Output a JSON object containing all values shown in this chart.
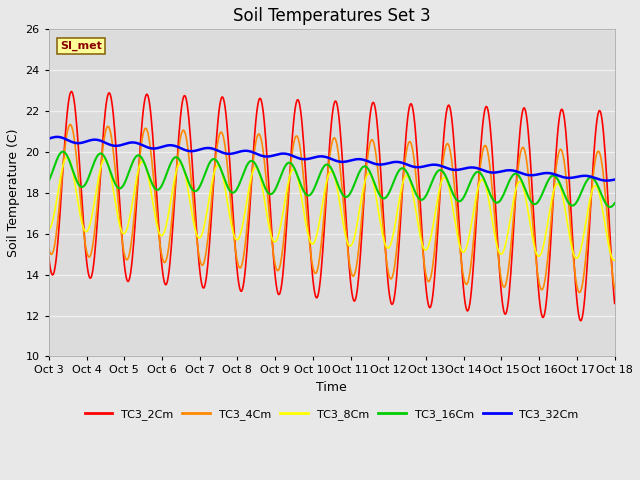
{
  "title": "Soil Temperatures Set 3",
  "xlabel": "Time",
  "ylabel": "Soil Temperature (C)",
  "ylim": [
    10,
    26
  ],
  "xlim": [
    0,
    15
  ],
  "x_tick_labels": [
    "Oct 3",
    "Oct 4",
    "Oct 5",
    "Oct 6",
    "Oct 7",
    "Oct 8",
    "Oct 9",
    "Oct 10",
    "Oct 11",
    "Oct 12",
    "Oct 13",
    "Oct 14",
    "Oct 15",
    "Oct 16",
    "Oct 17",
    "Oct 18"
  ],
  "x_tick_positions": [
    0,
    1,
    2,
    3,
    4,
    5,
    6,
    7,
    8,
    9,
    10,
    11,
    12,
    13,
    14,
    15
  ],
  "annotation_text": "SI_met",
  "line_colors": [
    "#ff0000",
    "#ff8800",
    "#ffff00",
    "#00cc00",
    "#0000ff"
  ],
  "line_labels": [
    "TC3_2Cm",
    "TC3_4Cm",
    "TC3_8Cm",
    "TC3_16Cm",
    "TC3_32Cm"
  ],
  "line_widths": [
    1.2,
    1.2,
    1.2,
    1.5,
    1.8
  ],
  "bg_color": "#e8e8e8",
  "axes_bg_color": "#dcdcdc",
  "grid_color": "#f0f0f0",
  "title_fontsize": 12,
  "label_fontsize": 9,
  "tick_fontsize": 8
}
